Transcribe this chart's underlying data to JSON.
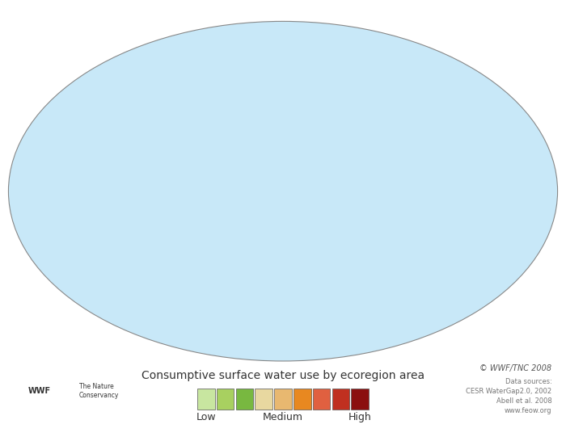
{
  "title": "Consumptive surface water use by ecoregion area",
  "legend_colors": [
    "#c8e6a0",
    "#a8d060",
    "#78b840",
    "#e8d8a0",
    "#e8b870",
    "#e88820",
    "#e06040",
    "#c03020",
    "#8b0f0f"
  ],
  "legend_label_low": "Low",
  "legend_label_medium": "Medium",
  "legend_label_high": "High",
  "copyright_text": "© WWF/TNC 2008",
  "data_sources_line1": "Data sources:",
  "data_sources_line2": "CESR WaterGap2.0, 2002",
  "data_sources_line3": "Abell et al. 2008",
  "data_sources_line4": "www.feow.org",
  "figure_background": "#ffffff",
  "ocean_color": "#c8e8f8",
  "title_fontsize": 10,
  "legend_fontsize": 9,
  "copyright_fontsize": 7,
  "datasource_fontsize": 6,
  "country_colors": {
    "India": "#8b0f0f",
    "Pakistan": "#c03020",
    "Iran": "#e06040",
    "Iraq": "#e06040",
    "Egypt": "#e06040",
    "Syria": "#e06040",
    "Uzbekistan": "#e88820",
    "Turkmenistan": "#e88820",
    "Afghanistan": "#e88820",
    "Bangladesh": "#e06040",
    "Saudi Arabia": "#e8d8a0",
    "Yemen": "#e8d8a0",
    "Jordan": "#e8d8a0",
    "Israel": "#e06040",
    "United States of America": "#e8b870",
    "Mexico": "#e88820",
    "Spain": "#e8b870",
    "Turkey": "#e88820",
    "China": "#e8b870",
    "Morocco": "#e8d8a0",
    "Algeria": "#a8d060",
    "Libya": "#e8d8a0",
    "Tunisia": "#e8d8a0",
    "Portugal": "#e8d8a0",
    "France": "#78b840",
    "Italy": "#e8d8a0",
    "Greece": "#e8d8a0",
    "Kazakhstan": "#a8d060",
    "Russia": "#78b840",
    "Brazil": "#78b840",
    "Argentina": "#a8d060",
    "Australia": "#a8d060",
    "South Africa": "#a8d060",
    "Nigeria": "#78b840",
    "Ethiopia": "#78b840",
    "Sudan": "#a8d060",
    "Myanmar": "#e8b870",
    "Thailand": "#e8b870",
    "Vietnam": "#e8b870",
    "Cambodia": "#e8b870",
    "Laos": "#78b840",
    "Indonesia": "#78b840",
    "Philippines": "#78b840",
    "Japan": "#78b840",
    "South Korea": "#e8d8a0",
    "North Korea": "#a8d060",
    "Taiwan": "#e8d8a0",
    "Sri Lanka": "#e8b870",
    "Nepal": "#e88820",
    "Colombia": "#78b840",
    "Venezuela": "#78b840",
    "Peru": "#78b840",
    "Chile": "#a8d060",
    "Bolivia": "#78b840",
    "Paraguay": "#a8d060",
    "Uruguay": "#a8d060",
    "Ecuador": "#78b840",
    "Canada": "#c8e6a0",
    "Greenland": "#c8e6a0",
    "Germany": "#c8e6a0",
    "Poland": "#c8e6a0",
    "Ukraine": "#a8d060",
    "Romania": "#a8d060",
    "Hungary": "#e8d8a0",
    "Czech Republic": "#c8e6a0",
    "Sweden": "#c8e6a0",
    "Norway": "#c8e6a0",
    "Finland": "#c8e6a0",
    "United Kingdom": "#c8e6a0",
    "Ireland": "#c8e6a0",
    "Denmark": "#c8e6a0",
    "Netherlands": "#c8e6a0",
    "Belgium": "#c8e6a0",
    "Switzerland": "#c8e6a0",
    "Austria": "#c8e6a0",
    "Tanzania": "#78b840",
    "Kenya": "#78b840",
    "Somalia": "#e8d8a0",
    "Mozambique": "#78b840",
    "Zimbabwe": "#a8d060",
    "Zambia": "#78b840",
    "Angola": "#78b840",
    "Congo": "#78b840",
    "Dem. Rep. Congo": "#78b840",
    "Cameroon": "#78b840",
    "Ghana": "#78b840",
    "Ivory Coast": "#78b840",
    "Senegal": "#a8d060",
    "Mali": "#a8d060",
    "Niger": "#a8d060",
    "Chad": "#a8d060",
    "Mauritania": "#a8d060",
    "Guatemala": "#e88820",
    "Cuba": "#a8d060"
  }
}
